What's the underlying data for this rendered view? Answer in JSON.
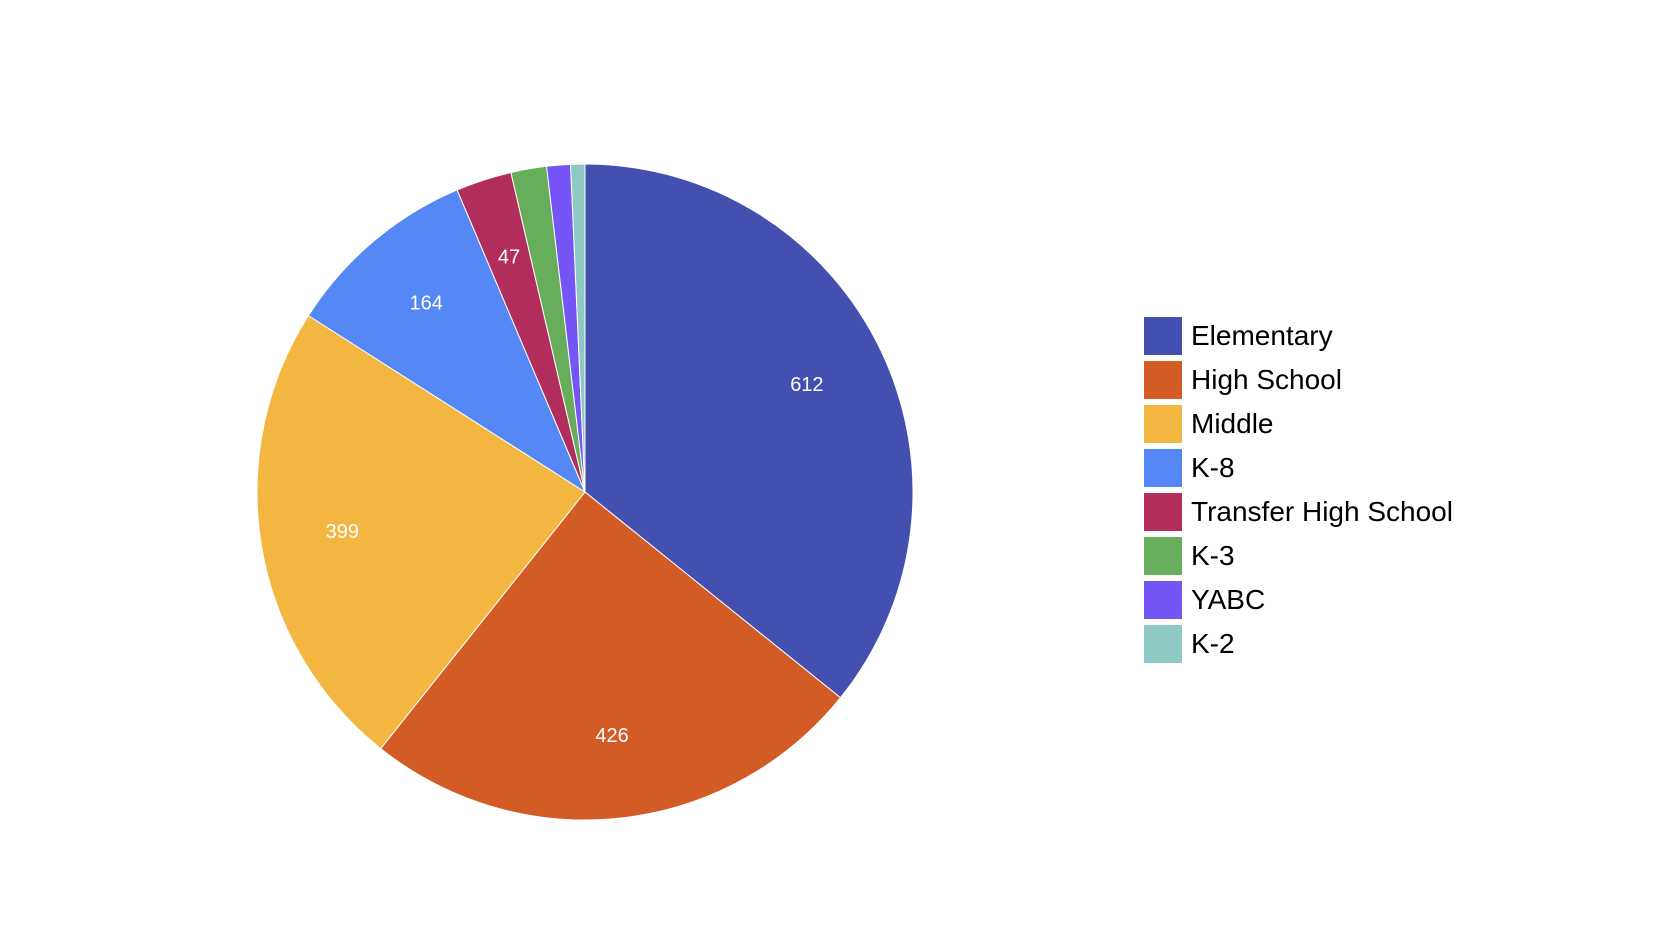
{
  "chart_data": {
    "type": "pie",
    "title": "",
    "legend_position": "right",
    "start": "12 o'clock, clockwise",
    "slices": [
      {
        "label": "Elementary",
        "value": 612,
        "color": "#4350AF",
        "value_label": "612"
      },
      {
        "label": "High School",
        "value": 426,
        "color": "#D35B25",
        "value_label": "426"
      },
      {
        "label": "Middle",
        "value": 399,
        "color": "#F3B640",
        "value_label": "399"
      },
      {
        "label": "K-8",
        "value": 164,
        "color": "#5587F5",
        "value_label": "164"
      },
      {
        "label": "Transfer High School",
        "value": 47,
        "color": "#B12D5B",
        "value_label": "47"
      },
      {
        "label": "K-3",
        "value": 30,
        "color": "#67AE5C",
        "value_label": ""
      },
      {
        "label": "YABC",
        "value": 20,
        "color": "#7655F6",
        "value_label": ""
      },
      {
        "label": "K-2",
        "value": 12,
        "color": "#8FC9C4",
        "value_label": ""
      }
    ]
  }
}
